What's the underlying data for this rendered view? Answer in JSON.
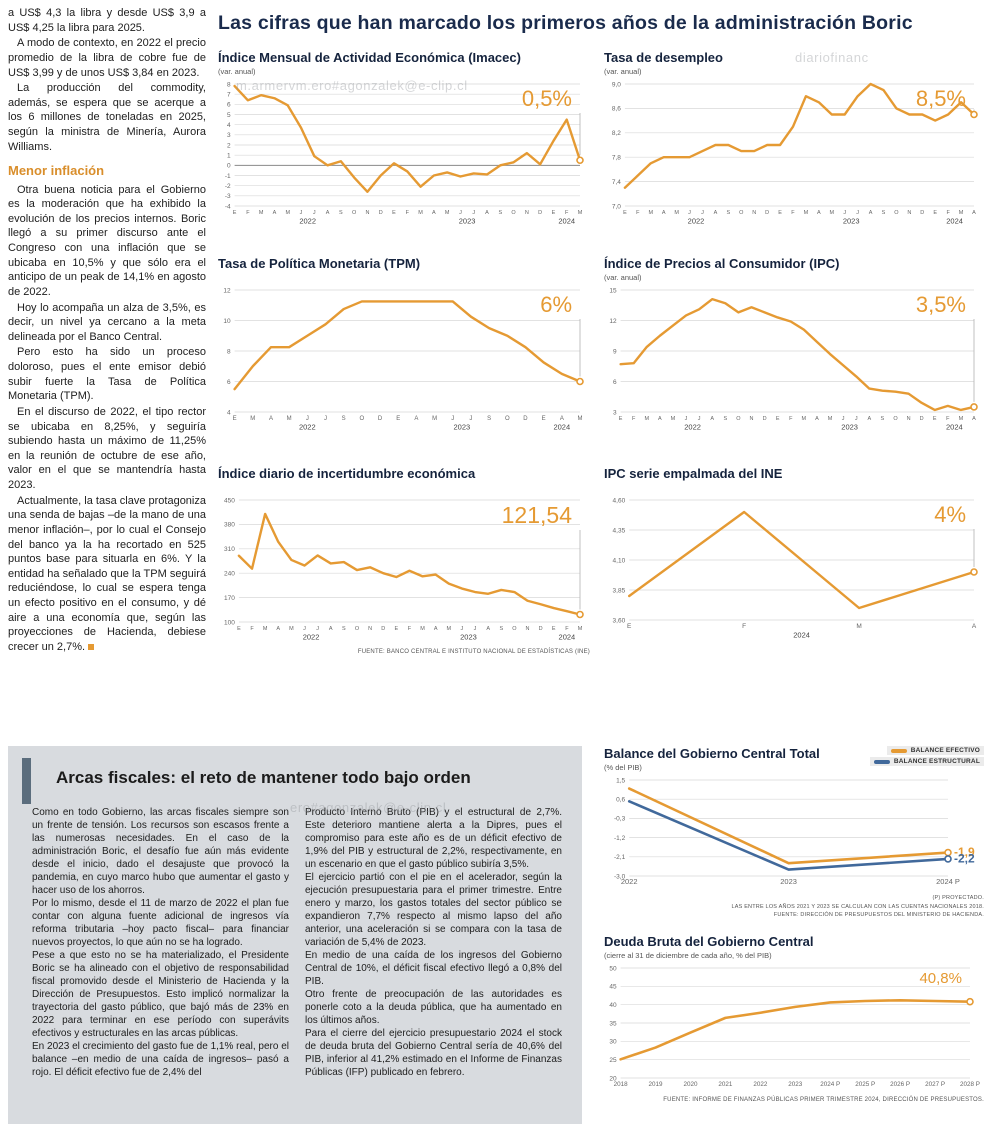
{
  "page": {
    "main_title": "Las cifras que han marcado los primeros años de la administración Boric",
    "charts_source": "FUENTE: BANCO CENTRAL E INSTITUTO NACIONAL DE ESTADÍSTICAS (INE)",
    "watermarks": [
      "m.armervm.ero#agonzalek@e-clip.cl",
      "diariofinanc",
      "ero#agonzalek@e-clip.cl"
    ]
  },
  "article": {
    "paragraphs": [
      "a US$ 4,3 la libra y desde US$ 3,9 a US$ 4,25 la libra para 2025.",
      "A modo de contexto, en 2022 el precio promedio de la libra de cobre fue de US$ 3,99 y de unos US$ 3,84 en 2023.",
      "La producción del commodity, además, se espera que se acerque a los 6 millones de toneladas en 2025, según la ministra de Minería, Aurora Williams."
    ],
    "heading": "Menor inflación",
    "paragraphs2": [
      "Otra buena noticia para el Gobierno es la moderación que ha exhibido la evolución de los precios internos. Boric llegó a su primer discurso ante el Congreso con una inflación que se ubicaba en 10,5% y que sólo era el anticipo de un peak de 14,1% en agosto de 2022.",
      "Hoy lo acompaña un alza de 3,5%, es decir, un nivel ya cercano a la meta delineada por el Banco Central.",
      "Pero esto ha sido un proceso doloroso, pues el ente emisor debió subir fuerte la Tasa de Política Monetaria (TPM).",
      "En el discurso de 2022, el tipo rector se ubicaba en 8,25%, y seguiría subiendo hasta un máximo de 11,25% en la reunión de octubre de ese año, valor en el que se mantendría hasta 2023.",
      "Actualmente, la tasa clave protagoniza una senda de bajas –de la mano de una menor inflación–, por lo cual el Consejo del banco ya la ha recortado en 525 puntos base para situarla en 6%. Y la entidad ha señalado que la TPM seguirá reduciéndose, lo cual se espera tenga un efecto positivo en el consumo, y dé aire a una economía que, según las proyecciones de Hacienda, debiese crecer un 2,7%."
    ]
  },
  "fiscal": {
    "heading": "Arcas fiscales: el reto de mantener todo bajo orden",
    "col1": [
      "Como en todo Gobierno, las arcas fiscales siempre son un frente de tensión. Los recursos son escasos frente a las numerosas necesidades. En el caso de la administración Boric, el desafío fue aún más evidente desde el inicio, dado el desajuste que provocó la pandemia, en cuyo marco hubo que aumentar el gasto y hacer uso de los ahorros.",
      "Por lo mismo, desde el 11 de marzo de 2022 el plan fue contar con alguna fuente adicional de ingresos vía reforma tributaria –hoy pacto fiscal– para financiar nuevos proyectos, lo que aún no se ha logrado.",
      "Pese a que esto no se ha materializado, el Presidente Boric se ha alineado con el objetivo de responsabilidad fiscal promovido desde el Ministerio de Hacienda y la Dirección de Presupuestos. Esto implicó normalizar la trayectoria del gasto público, que bajó más de 23% en 2022 para terminar en ese período con superávits efectivos y estructurales en las arcas públicas.",
      "En 2023 el crecimiento del gasto fue de 1,1% real, pero el balance –en medio de una caída de ingresos– pasó a rojo. El déficit efectivo fue de 2,4% del"
    ],
    "col2": [
      "Producto Interno Bruto (PIB) y el estructural de 2,7%. Este deterioro mantiene alerta a la Dipres, pues el compromiso para este año es de un déficit efectivo de 1,9% del PIB y estructural de 2,2%, respectivamente, en un escenario en que el gasto público subiría 3,5%.",
      "El ejercicio partió con el pie en el acelerador, según la ejecución presupuestaria para el primer trimestre. Entre enero y marzo, los gastos totales del sector público se expandieron 7,7% respecto al mismo lapso del año anterior, una aceleración si se compara con la tasa de variación de 5,4% de 2023.",
      "En medio de una caída de los ingresos del Gobierno Central de 10%, el déficit fiscal efectivo llegó a 0,8% del PIB.",
      "Otro frente de preocupación de las autoridades es ponerle coto a la deuda pública, que ha aumentado en los últimos años.",
      "Para el cierre del ejercicio presupuestario 2024 el stock de deuda bruta del Gobierno Central sería de 40,6% del PIB, inferior al 41,2% estimado en el Informe de Finanzas Públicas (IFP) publicado en febrero."
    ]
  },
  "chart_data": [
    {
      "id": "imacec",
      "type": "line",
      "title": "Índice Mensual de Actividad Económica (Imacec)",
      "subtitle": "(var. anual)",
      "callout": "0,5%",
      "callout_color": "#E59A33",
      "ylim": [
        -4,
        8
      ],
      "ytick_vals": [
        8,
        7,
        6,
        5,
        4,
        3,
        2,
        1,
        0,
        -1,
        -2,
        -3,
        -4
      ],
      "ytick_labels": [
        "8",
        "7",
        "6",
        "5",
        "4",
        "3",
        "2",
        "1",
        "0",
        "-1",
        "-2",
        "-3",
        "-4"
      ],
      "x_labels": [
        "E",
        "F",
        "M",
        "A",
        "M",
        "J",
        "J",
        "A",
        "S",
        "O",
        "N",
        "D",
        "E",
        "F",
        "M",
        "A",
        "M",
        "J",
        "J",
        "A",
        "S",
        "O",
        "N",
        "D",
        "E",
        "F",
        "M"
      ],
      "year_groups": [
        {
          "label": "2022",
          "s": 0,
          "e": 11
        },
        {
          "label": "2023",
          "s": 12,
          "e": 23
        },
        {
          "label": "2024",
          "s": 24,
          "e": 26
        }
      ],
      "series": [
        {
          "name": "Imacec",
          "color": "#E59A33",
          "values": [
            7.8,
            6.4,
            6.9,
            6.6,
            5.9,
            3.7,
            0.9,
            0.0,
            0.4,
            -1.2,
            -2.6,
            -1.0,
            0.2,
            -0.6,
            -2.1,
            -1.0,
            -0.7,
            -1.1,
            -0.8,
            -0.9,
            0.0,
            0.3,
            1.2,
            0.1,
            2.4,
            4.5,
            0.5
          ]
        }
      ]
    },
    {
      "id": "desempleo",
      "type": "line",
      "title": "Tasa de desempleo",
      "subtitle": "(var. anual)",
      "callout": "8,5%",
      "callout_color": "#E59A33",
      "ylim": [
        7.0,
        9.0
      ],
      "ytick_vals": [
        9.0,
        8.6,
        8.2,
        7.8,
        7.4,
        7.0
      ],
      "ytick_labels": [
        "9,0",
        "8,6",
        "8,2",
        "7,8",
        "7,4",
        "7,0"
      ],
      "x_labels": [
        "E",
        "F",
        "M",
        "A",
        "M",
        "J",
        "J",
        "A",
        "S",
        "O",
        "N",
        "D",
        "E",
        "F",
        "M",
        "A",
        "M",
        "J",
        "J",
        "A",
        "S",
        "O",
        "N",
        "D",
        "E",
        "F",
        "M",
        "A"
      ],
      "year_groups": [
        {
          "label": "2022",
          "s": 0,
          "e": 11
        },
        {
          "label": "2023",
          "s": 12,
          "e": 23
        },
        {
          "label": "2024",
          "s": 24,
          "e": 27
        }
      ],
      "series": [
        {
          "name": "Tasa de desempleo",
          "color": "#E59A33",
          "values": [
            7.3,
            7.5,
            7.7,
            7.8,
            7.8,
            7.8,
            7.9,
            8.0,
            8.0,
            7.9,
            7.9,
            8.0,
            8.0,
            8.3,
            8.8,
            8.7,
            8.5,
            8.5,
            8.8,
            9.0,
            8.9,
            8.6,
            8.5,
            8.5,
            8.4,
            8.5,
            8.7,
            8.5
          ]
        }
      ]
    },
    {
      "id": "tpm",
      "type": "line",
      "title": "Tasa de Política Monetaria (TPM)",
      "callout": "6%",
      "callout_color": "#E59A33",
      "ylim": [
        4,
        12
      ],
      "ytick_vals": [
        12,
        10,
        8,
        6,
        4
      ],
      "ytick_labels": [
        "12",
        "10",
        "8",
        "6",
        "4"
      ],
      "x_labels": [
        "E",
        "M",
        "A",
        "M",
        "J",
        "J",
        "S",
        "O",
        "D",
        "E",
        "A",
        "M",
        "J",
        "J",
        "S",
        "O",
        "D",
        "E",
        "A",
        "M"
      ],
      "year_groups": [
        {
          "label": "2022",
          "s": 0,
          "e": 8
        },
        {
          "label": "2023",
          "s": 9,
          "e": 16
        },
        {
          "label": "2024",
          "s": 17,
          "e": 19
        }
      ],
      "series": [
        {
          "name": "TPM",
          "color": "#E59A33",
          "values": [
            5.5,
            7.0,
            8.25,
            8.25,
            9.0,
            9.75,
            10.75,
            11.25,
            11.25,
            11.25,
            11.25,
            11.25,
            11.25,
            10.25,
            9.5,
            9.0,
            8.25,
            7.25,
            6.5,
            6.0
          ]
        }
      ]
    },
    {
      "id": "ipc",
      "type": "line",
      "title": "Índice de Precios al Consumidor (IPC)",
      "subtitle": "(var. anual)",
      "callout": "3,5%",
      "callout_color": "#E59A33",
      "ylim": [
        3,
        15
      ],
      "ytick_vals": [
        15,
        12,
        9,
        6,
        3
      ],
      "ytick_labels": [
        "15",
        "12",
        "9",
        "6",
        "3"
      ],
      "x_labels": [
        "E",
        "F",
        "M",
        "A",
        "M",
        "J",
        "J",
        "A",
        "S",
        "O",
        "N",
        "D",
        "E",
        "F",
        "M",
        "A",
        "M",
        "J",
        "J",
        "A",
        "S",
        "O",
        "N",
        "D",
        "E",
        "F",
        "M",
        "A"
      ],
      "year_groups": [
        {
          "label": "2022",
          "s": 0,
          "e": 11
        },
        {
          "label": "2023",
          "s": 12,
          "e": 23
        },
        {
          "label": "2024",
          "s": 24,
          "e": 27
        }
      ],
      "series": [
        {
          "name": "IPC",
          "color": "#E59A33",
          "values": [
            7.7,
            7.8,
            9.4,
            10.5,
            11.5,
            12.5,
            13.1,
            14.1,
            13.7,
            12.8,
            13.3,
            12.8,
            12.3,
            11.9,
            11.1,
            9.9,
            8.7,
            7.6,
            6.5,
            5.3,
            5.1,
            5.0,
            4.8,
            3.9,
            3.2,
            3.6,
            3.2,
            3.5
          ]
        }
      ]
    },
    {
      "id": "incertidumbre",
      "type": "line",
      "title": "Índice diario de incertidumbre económica",
      "callout": "121,54",
      "callout_color": "#E59A33",
      "ylim": [
        100,
        450
      ],
      "ytick_vals": [
        450,
        380,
        310,
        240,
        170,
        100
      ],
      "ytick_labels": [
        "450",
        "380",
        "310",
        "240",
        "170",
        "100"
      ],
      "x_labels": [
        "E",
        "F",
        "M",
        "A",
        "M",
        "J",
        "J",
        "A",
        "S",
        "O",
        "N",
        "D",
        "E",
        "F",
        "M",
        "A",
        "M",
        "J",
        "J",
        "A",
        "S",
        "O",
        "N",
        "D",
        "E",
        "F",
        "M"
      ],
      "year_groups": [
        {
          "label": "2022",
          "s": 0,
          "e": 11
        },
        {
          "label": "2023",
          "s": 12,
          "e": 23
        },
        {
          "label": "2024",
          "s": 24,
          "e": 26
        }
      ],
      "series": [
        {
          "name": "Incertidumbre económica",
          "color": "#E59A33",
          "values": [
            290,
            253,
            410,
            330,
            278,
            262,
            291,
            268,
            272,
            249,
            257,
            240,
            229,
            247,
            231,
            236,
            210,
            196,
            186,
            181,
            192,
            186,
            161,
            151,
            140,
            131,
            121.54
          ]
        }
      ]
    },
    {
      "id": "empalmada",
      "type": "line",
      "title": "IPC serie empalmada del INE",
      "callout": "4%",
      "callout_color": "#E59A33",
      "ylim": [
        3.6,
        4.6
      ],
      "ytick_vals": [
        4.6,
        4.35,
        4.1,
        3.85,
        3.6
      ],
      "ytick_labels": [
        "4,60",
        "4,35",
        "4,10",
        "3,85",
        "3,60"
      ],
      "x_labels": [
        "E",
        "F",
        "M",
        "A"
      ],
      "year_groups": [
        {
          "label": "2024",
          "s": 0,
          "e": 3
        }
      ],
      "series": [
        {
          "name": "IPC serie empalmada",
          "color": "#E59A33",
          "values": [
            3.8,
            4.5,
            3.7,
            4.0
          ]
        }
      ]
    },
    {
      "id": "balance",
      "type": "line",
      "title": "Balance del Gobierno Central Total",
      "subtitle": "(% del PIB)",
      "ylim": [
        -3.0,
        1.5
      ],
      "ytick_vals": [
        1.5,
        0.6,
        -0.3,
        -1.2,
        -2.1,
        -3.0
      ],
      "ytick_labels": [
        "1,5",
        "0,6",
        "-0,3",
        "-1,2",
        "-2,1",
        "-3,0"
      ],
      "x_labels": [
        "2022",
        "2023",
        "2024 P"
      ],
      "series": [
        {
          "name": "BALANCE EFECTIVO",
          "color": "#E59A33",
          "values": [
            1.1,
            -2.4,
            -1.9
          ],
          "callout": "-1,9"
        },
        {
          "name": "BALANCE ESTRUCTURAL",
          "color": "#41699B",
          "values": [
            0.5,
            -2.7,
            -2.2
          ],
          "callout": "-2,2"
        }
      ],
      "footnotes": [
        "(P) PROYECTADO.",
        "LAS ENTRE LOS AÑOS 2021 Y 2023 SE CALCULAN  CON LAS CUENTAS NACIONALES 2018.",
        "FUENTE: DIRECCIÓN DE PRESUPUESTOS DEL MINISTERIO DE HACIENDA."
      ]
    },
    {
      "id": "deuda",
      "type": "line",
      "title": "Deuda Bruta del Gobierno Central",
      "subtitle": "(cierre al 31 de diciembre de cada año, % del PIB)",
      "callout": "40,8%",
      "callout_color": "#E59A33",
      "ylim": [
        20,
        50
      ],
      "ytick_vals": [
        50,
        45,
        40,
        35,
        30,
        25,
        20
      ],
      "ytick_labels": [
        "50",
        "45",
        "40",
        "35",
        "30",
        "25",
        "20"
      ],
      "x_labels": [
        "2018",
        "2019",
        "2020",
        "2021",
        "2022",
        "2023",
        "2024 P",
        "2025 P",
        "2026 P",
        "2027 P",
        "2028 P"
      ],
      "series": [
        {
          "name": "Deuda bruta",
          "color": "#E59A33",
          "values": [
            25.1,
            28.3,
            32.4,
            36.4,
            37.8,
            39.4,
            40.6,
            41.0,
            41.2,
            41.0,
            40.8
          ]
        }
      ],
      "source": "FUENTE: INFORME DE FINANZAS PÚBLICAS PRIMER TRIMESTRE 2024, DIRECCIÓN DE PRESUPUESTOS."
    }
  ]
}
